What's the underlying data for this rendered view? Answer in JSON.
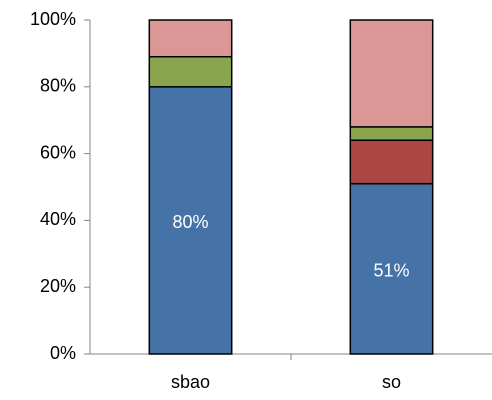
{
  "chart_data": {
    "type": "stacked_bar",
    "categories": [
      "sbao",
      "so"
    ],
    "series": [
      {
        "color": "#4572a7",
        "values": [
          80,
          51
        ],
        "value_labels": [
          "80%",
          "51%"
        ]
      },
      {
        "color": "#aa4643",
        "values": [
          0,
          13
        ]
      },
      {
        "color": "#89a54e",
        "values": [
          9,
          4
        ]
      },
      {
        "color": "#db9696",
        "values": [
          11,
          32
        ]
      }
    ],
    "ylim": [
      0,
      100
    ],
    "yticks": [
      {
        "value": 0,
        "label": "0%"
      },
      {
        "value": 20,
        "label": "20%"
      },
      {
        "value": 40,
        "label": "40%"
      },
      {
        "value": 60,
        "label": "60%"
      },
      {
        "value": 80,
        "label": "80%"
      },
      {
        "value": 100,
        "label": "100%"
      }
    ]
  }
}
